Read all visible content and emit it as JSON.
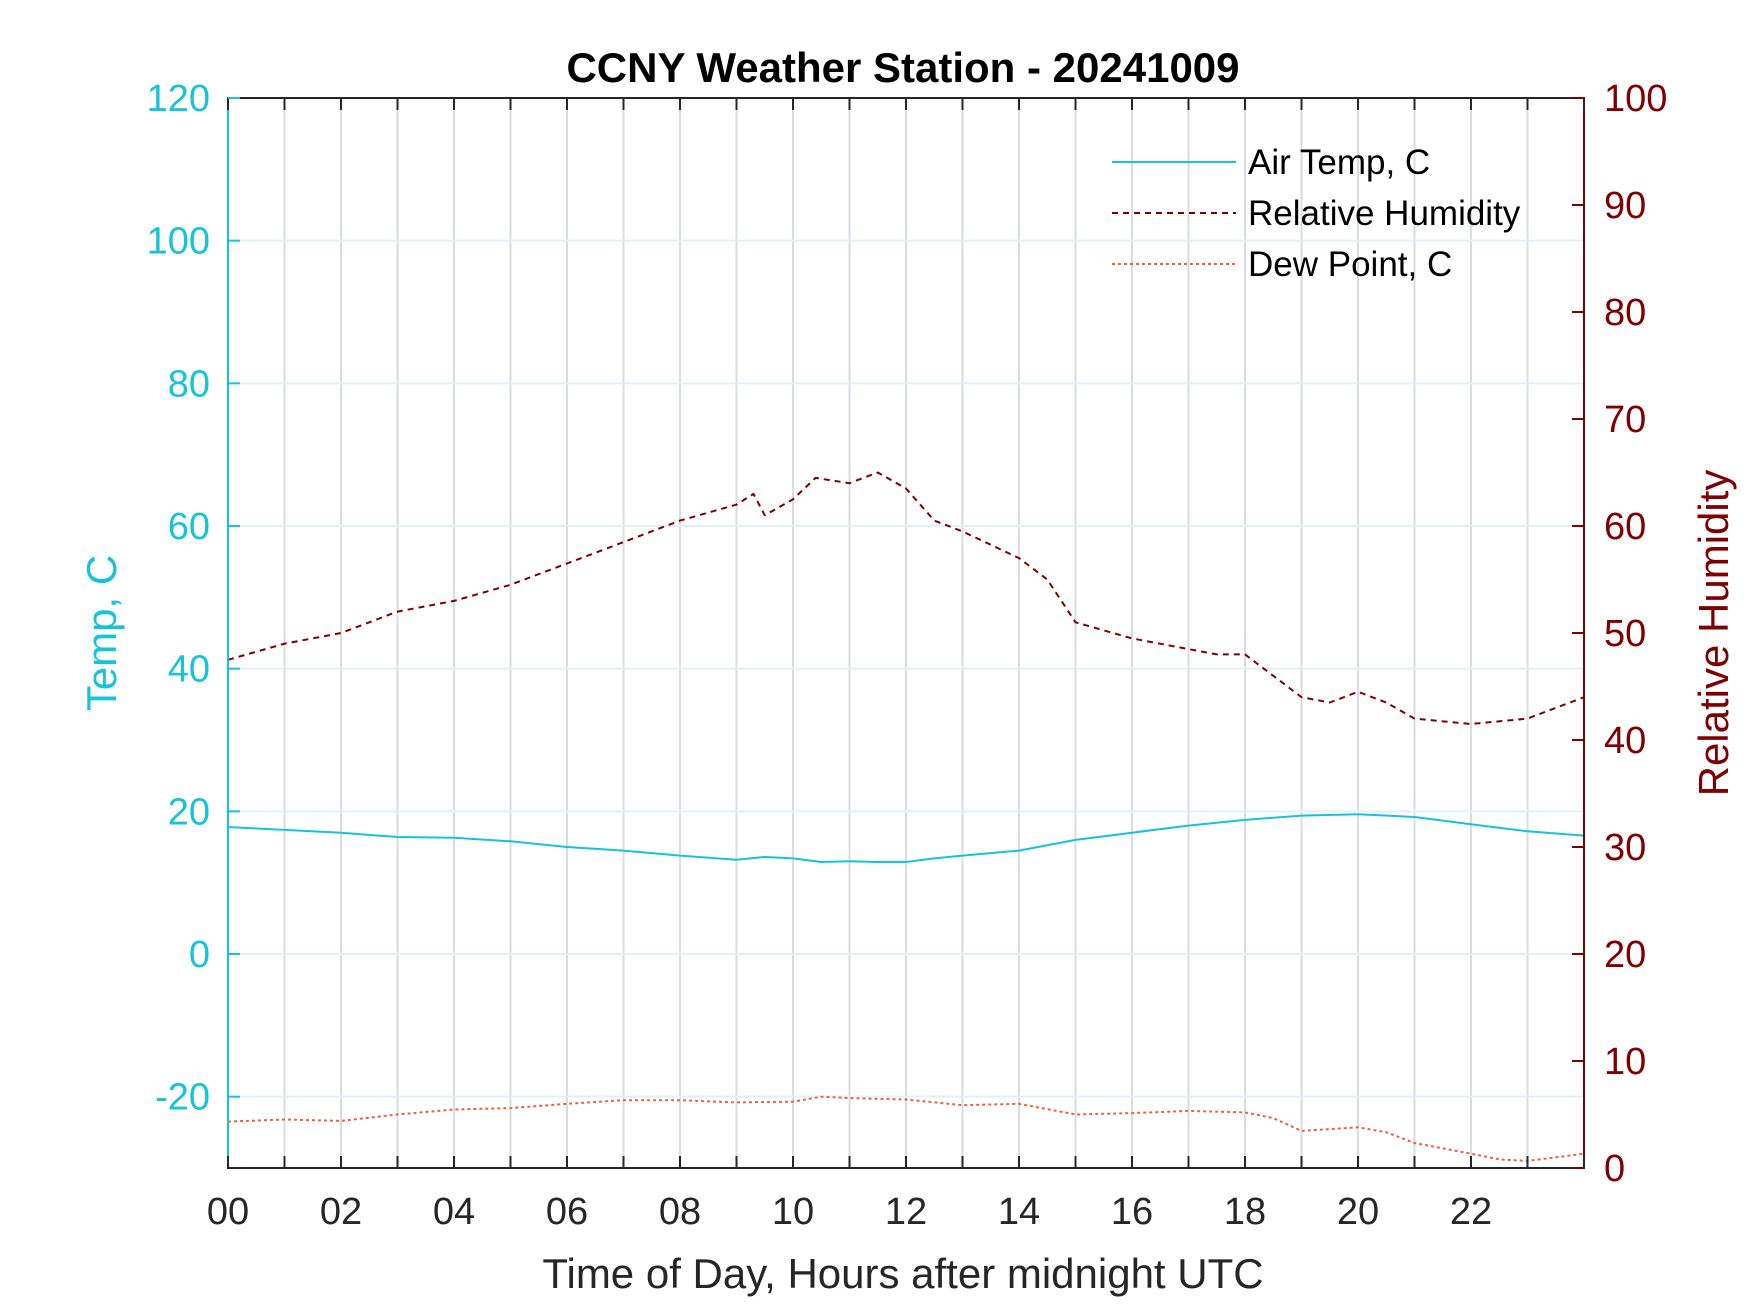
{
  "chart_data": {
    "type": "line",
    "title": "CCNY Weather Station - 20241009",
    "xlabel": "Time of Day, Hours after midnight UTC",
    "ylabel_left": "Temp, C",
    "ylabel_right": "Relative Humidity",
    "xlim": [
      0,
      24
    ],
    "ylim_left": [
      -30,
      120
    ],
    "ylim_right": [
      0,
      100
    ],
    "x_ticks": [
      0,
      2,
      4,
      6,
      8,
      10,
      12,
      14,
      16,
      18,
      20,
      22
    ],
    "x_tick_labels": [
      "00",
      "02",
      "04",
      "06",
      "08",
      "10",
      "12",
      "14",
      "16",
      "18",
      "20",
      "22"
    ],
    "y_left_ticks": [
      -20,
      0,
      20,
      40,
      60,
      80,
      100,
      120
    ],
    "y_right_ticks": [
      0,
      10,
      20,
      30,
      40,
      50,
      60,
      70,
      80,
      90,
      100
    ],
    "grid": true,
    "legend_position": "top-right",
    "colors": {
      "left_axis": "#17c3d9",
      "right_axis": "#7f0000",
      "air_temp": "#17c3d9",
      "rh": "#7f0000",
      "dew_point": "#e8643c"
    },
    "series": [
      {
        "name": "Air Temp, C",
        "axis": "left",
        "style": "solid",
        "x": [
          0,
          1,
          2,
          3,
          4,
          5,
          6,
          7,
          8,
          9,
          9.5,
          10,
          10.5,
          11,
          11.5,
          12,
          12.5,
          13,
          14,
          15,
          16,
          17,
          18,
          19,
          20,
          21,
          22,
          23,
          24
        ],
        "y": [
          17.8,
          17.4,
          17,
          16.4,
          16.3,
          15.8,
          15,
          14.5,
          13.8,
          13.2,
          13.6,
          13.4,
          12.9,
          13,
          12.9,
          12.9,
          13.4,
          13.8,
          14.5,
          16,
          17,
          18,
          18.8,
          19.4,
          19.6,
          19.2,
          18.2,
          17.2,
          16.6
        ]
      },
      {
        "name": "Relative Humidity",
        "axis": "right",
        "style": "dashed",
        "x": [
          0,
          1,
          2,
          3,
          4,
          5,
          6,
          7,
          8,
          9,
          9.3,
          9.5,
          10,
          10.4,
          11,
          11.5,
          12,
          12.5,
          13,
          14,
          14.5,
          15,
          16,
          17,
          17.5,
          18,
          18.5,
          19,
          19.5,
          20,
          20.5,
          21,
          22,
          23,
          24
        ],
        "y": [
          47.5,
          49,
          50,
          52,
          53,
          54.5,
          56.5,
          58.5,
          60.5,
          62,
          63,
          61,
          62.5,
          64.5,
          64,
          65,
          63.5,
          60.5,
          59.5,
          57,
          55,
          51,
          49.5,
          48.5,
          48,
          48,
          46,
          44,
          43.5,
          44.5,
          43.5,
          42,
          41.5,
          42,
          44
        ]
      },
      {
        "name": "Dew Point, C",
        "axis": "left",
        "style": "dotted",
        "x": [
          0,
          1,
          2,
          3,
          4,
          5,
          6,
          7,
          8,
          9,
          10,
          10.5,
          11,
          12,
          13,
          14,
          15,
          16,
          17,
          18,
          18.5,
          19,
          20,
          20.5,
          21,
          22,
          22.5,
          23,
          24
        ],
        "y": [
          -23.5,
          -23.2,
          -23.4,
          -22.5,
          -21.8,
          -21.6,
          -21,
          -20.5,
          -20.5,
          -20.8,
          -20.7,
          -20,
          -20.2,
          -20.4,
          -21.2,
          -21,
          -22.5,
          -22.3,
          -22,
          -22.2,
          -23,
          -24.8,
          -24.3,
          -25,
          -26.5,
          -28,
          -28.8,
          -29,
          -28
        ]
      }
    ]
  }
}
